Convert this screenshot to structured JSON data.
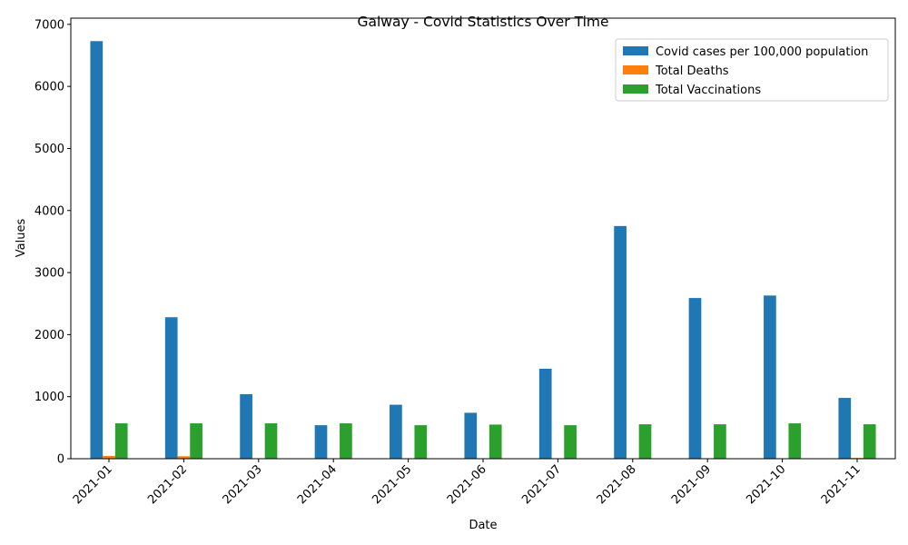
{
  "chart_data": {
    "type": "bar",
    "title": "Galway - Covid Statistics Over Time",
    "xlabel": "Date",
    "ylabel": "Values",
    "categories": [
      "2021-01",
      "2021-02",
      "2021-03",
      "2021-04",
      "2021-05",
      "2021-06",
      "2021-07",
      "2021-08",
      "2021-09",
      "2021-10",
      "2021-11"
    ],
    "ylim": [
      0,
      7100
    ],
    "yticks": [
      0,
      1000,
      2000,
      3000,
      4000,
      5000,
      6000,
      7000
    ],
    "grid": false,
    "legend_position": "top-right",
    "series": [
      {
        "name": "Covid cases per 100,000 population",
        "color": "#1f77b4",
        "values": [
          6730,
          2280,
          1040,
          540,
          870,
          740,
          1450,
          3750,
          2590,
          2630,
          980
        ]
      },
      {
        "name": "Total Deaths",
        "color": "#ff7f0e",
        "values": [
          45,
          40,
          5,
          3,
          2,
          1,
          1,
          2,
          3,
          4,
          12
        ]
      },
      {
        "name": "Total Vaccinations",
        "color": "#2ca02c",
        "values": [
          570,
          570,
          570,
          570,
          540,
          550,
          540,
          555,
          555,
          570,
          555
        ]
      }
    ]
  }
}
